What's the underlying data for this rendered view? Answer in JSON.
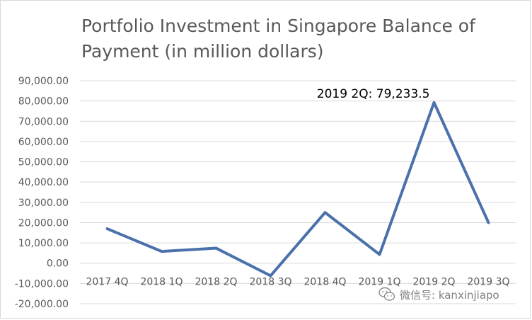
{
  "chart_data": {
    "type": "line",
    "title_lines": [
      "Portfolio Investment in Singapore Balance of",
      "Payment (in million dollars)"
    ],
    "categories": [
      "2017 4Q",
      "2018 1Q",
      "2018 2Q",
      "2018 3Q",
      "2018 4Q",
      "2019 1Q",
      "2019 2Q",
      "2019 3Q"
    ],
    "series": [
      {
        "values": [
          17000,
          5800,
          7400,
          -6200,
          25000,
          4300,
          79233.5,
          20000
        ]
      }
    ],
    "ylim": [
      -20000,
      90000
    ],
    "yticks": [
      -20000,
      -10000,
      0,
      10000,
      20000,
      30000,
      40000,
      50000,
      60000,
      70000,
      80000,
      90000
    ],
    "ytick_labels": [
      "-20,000.00",
      "-10,000.00",
      "0.00",
      "10,000.00",
      "20,000.00",
      "30,000.00",
      "40,000.00",
      "50,000.00",
      "60,000.00",
      "70,000.00",
      "80,000.00",
      "90,000.00"
    ],
    "annotation": {
      "text": "2019 2Q: 79,233.5",
      "category": "2019 2Q"
    },
    "grid": true,
    "legend": "none",
    "colors": {
      "line": "#4a71ab",
      "grid": "#d9d9d9",
      "text": "#595959"
    }
  },
  "watermark": {
    "icon": "wechat-icon",
    "text": "微信号: kanxinjiapo"
  }
}
